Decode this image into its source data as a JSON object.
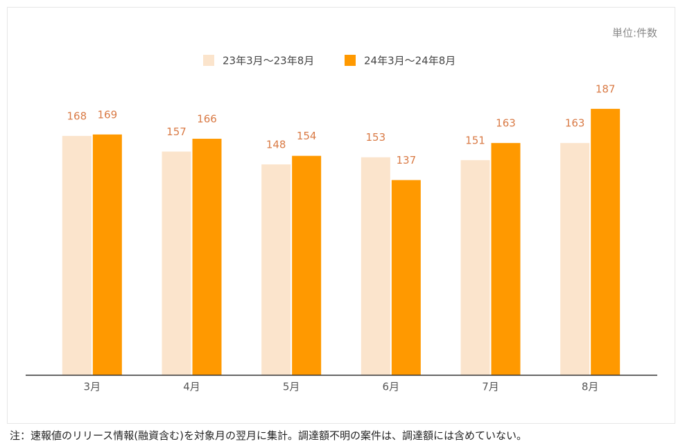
{
  "chart_data": {
    "type": "bar",
    "unit_label": "単位:件数",
    "categories": [
      "3月",
      "4月",
      "5月",
      "6月",
      "7月",
      "8月"
    ],
    "series": [
      {
        "name": "23年3月～23年8月",
        "color": "#fbe4cc",
        "values": [
          168,
          157,
          148,
          153,
          151,
          163
        ]
      },
      {
        "name": "24年3月～24年8月",
        "color": "#ff9900",
        "values": [
          169,
          166,
          154,
          137,
          163,
          187
        ]
      }
    ],
    "value_label_color": "#d97a45",
    "ylim": [
      0,
      250
    ]
  },
  "note": "注：速報値のリリース情報(融資含む)を対象月の翌月に集計。調達額不明の案件は、調達額には含めていない。"
}
